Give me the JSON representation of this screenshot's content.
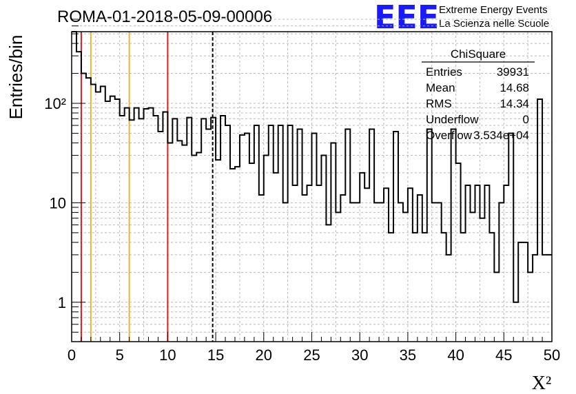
{
  "title": "ROMA-01-2018-05-09-00006",
  "logo": {
    "mark": "EEE",
    "line1": "Extreme Energy Events",
    "line2": "La Scienza nelle Scuole",
    "color": "#1a1aff"
  },
  "stats": {
    "name": "ChiSquare",
    "rows": [
      {
        "label": "Entries",
        "value": "39931"
      },
      {
        "label": "Mean",
        "value": "14.68"
      },
      {
        "label": "RMS",
        "value": "14.34"
      },
      {
        "label": "Underflow",
        "value": "0"
      },
      {
        "label": "Overflow",
        "value": "3.534e+04"
      }
    ]
  },
  "chart_data": {
    "type": "histogram",
    "xlabel": "X²",
    "ylabel": "Entries/bin",
    "xlim": [
      0,
      50
    ],
    "ylim": [
      0.5,
      700
    ],
    "yscale": "log",
    "grid": true,
    "bin_width": 0.5,
    "x_ticks": [
      0,
      5,
      10,
      15,
      20,
      25,
      30,
      35,
      40,
      45,
      50
    ],
    "y_ticks": [
      {
        "value": 1,
        "label": "1"
      },
      {
        "value": 10,
        "label": "10"
      },
      {
        "value": 100,
        "label": "10²"
      }
    ],
    "values": [
      700,
      330,
      200,
      180,
      155,
      130,
      148,
      105,
      118,
      110,
      75,
      90,
      68,
      90,
      70,
      88,
      90,
      75,
      52,
      82,
      40,
      70,
      42,
      38,
      72,
      30,
      32,
      70,
      55,
      72,
      27,
      75,
      60,
      22,
      23,
      48,
      50,
      25,
      60,
      12,
      30,
      60,
      20,
      60,
      10,
      60,
      15,
      55,
      12,
      15,
      50,
      15,
      30,
      6,
      40,
      8,
      12,
      55,
      10,
      10,
      20,
      14,
      55,
      10,
      10,
      14,
      5,
      52,
      10,
      8,
      14,
      5,
      12,
      5,
      55,
      10,
      10,
      5,
      3,
      55,
      25,
      5,
      15,
      8,
      15,
      7,
      15,
      5,
      2,
      10,
      15,
      50,
      1,
      4,
      4,
      2,
      3,
      110,
      3,
      3
    ],
    "vlines": [
      {
        "x": 1,
        "color": "#e8181d",
        "style": "solid"
      },
      {
        "x": 2,
        "color": "#e6b830",
        "style": "solid"
      },
      {
        "x": 6,
        "color": "#e6b830",
        "style": "solid"
      },
      {
        "x": 10,
        "color": "#e8181d",
        "style": "solid"
      },
      {
        "x": 14.68,
        "color": "#000000",
        "style": "dashed"
      }
    ]
  }
}
